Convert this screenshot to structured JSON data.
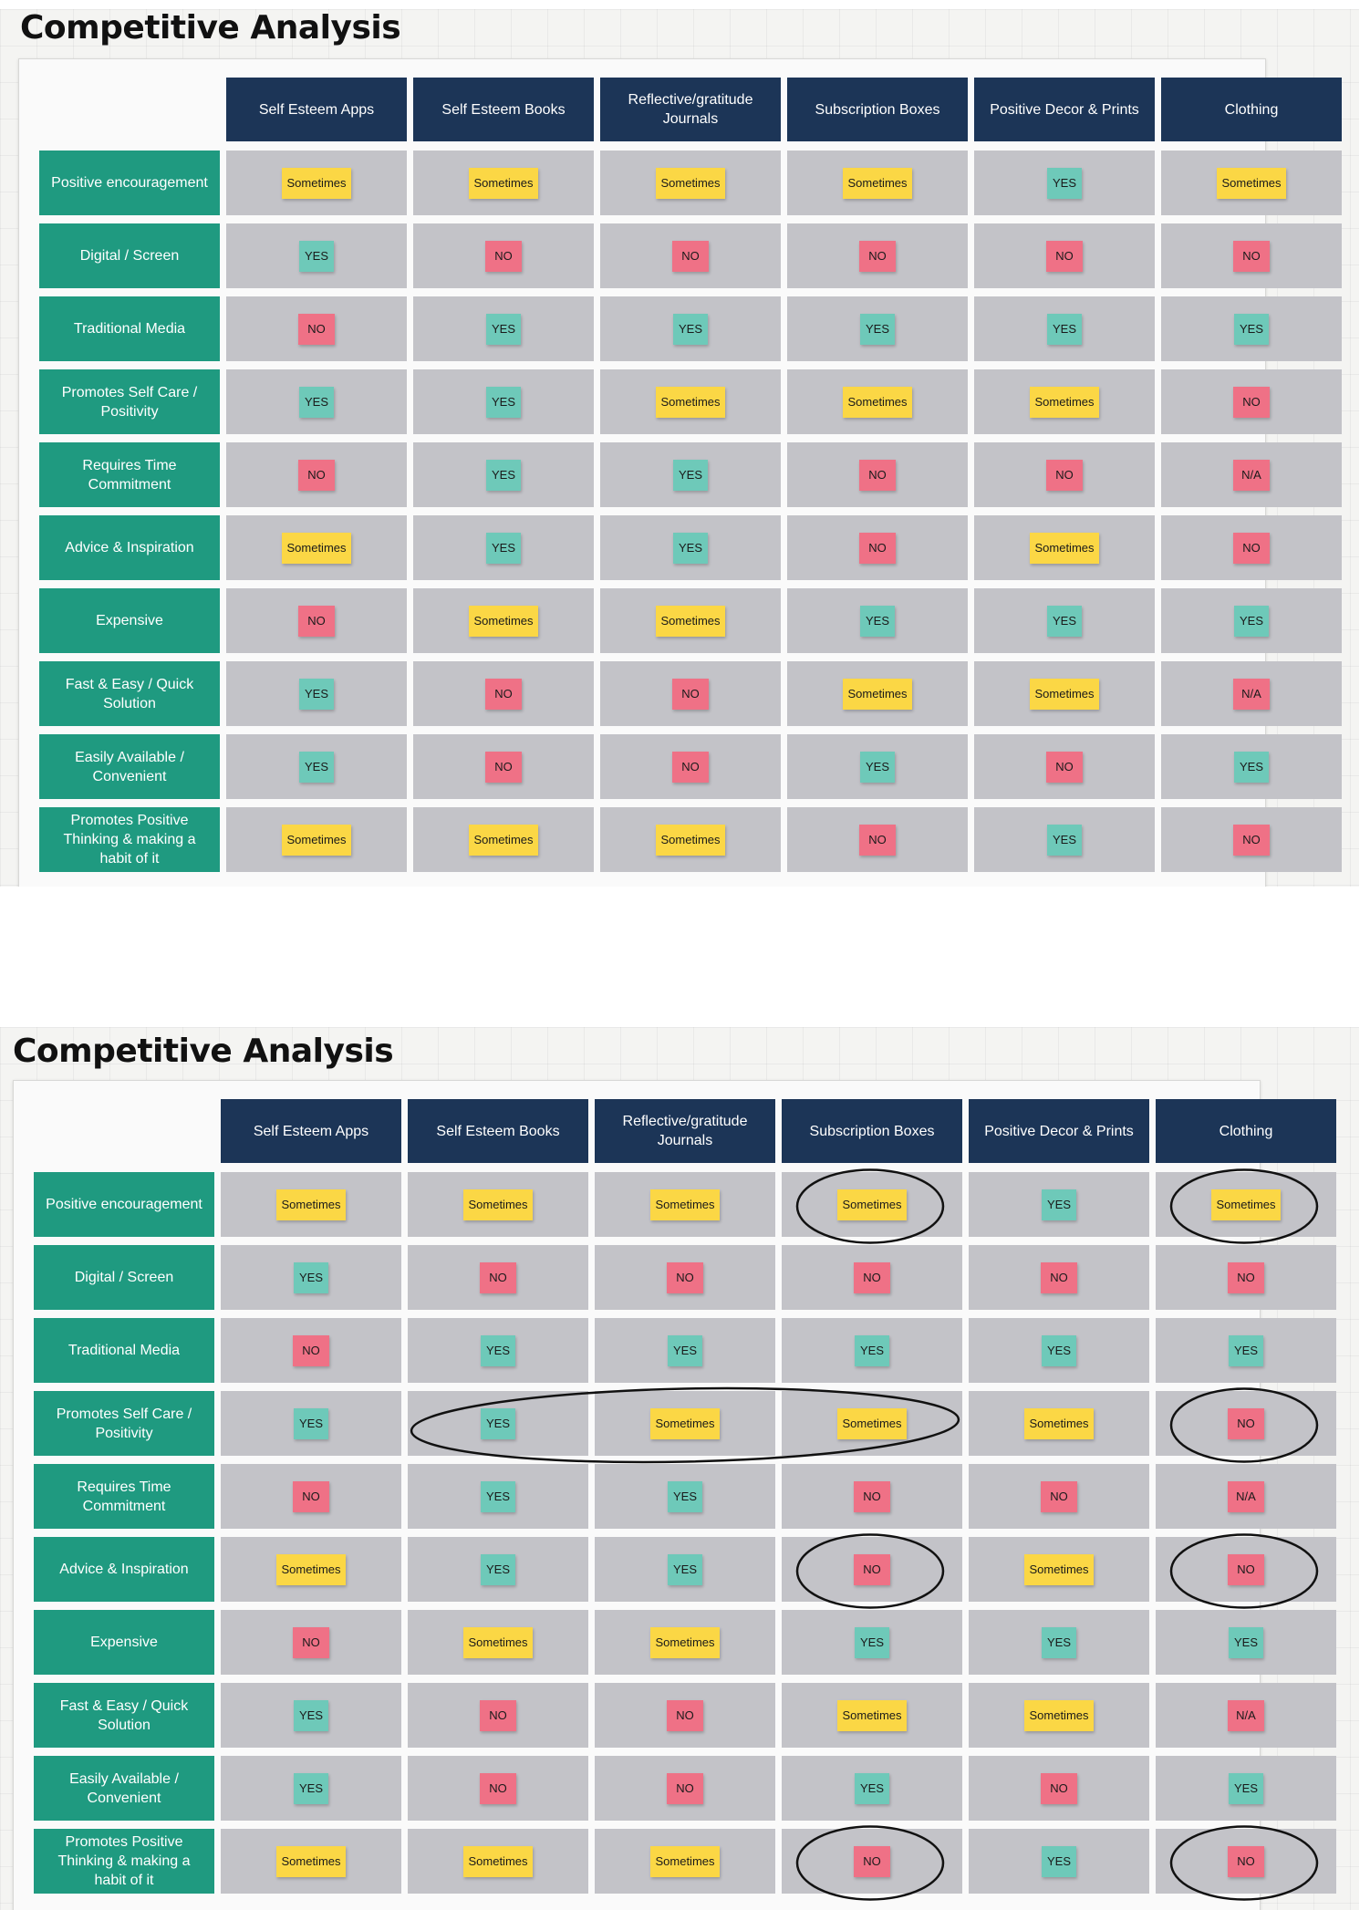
{
  "boards": [
    {
      "id": "original",
      "title": "Competitive Analysis"
    },
    {
      "id": "annotated",
      "title": "Competitive Analysis"
    }
  ],
  "columns": [
    "Self Esteem Apps",
    "Self Esteem Books",
    "Reflective/gratitude Journals",
    "Subscription Boxes",
    "Positive Decor & Prints",
    "Clothing"
  ],
  "rows": [
    {
      "label": "Positive encouragement",
      "values": [
        "Sometimes",
        "Sometimes",
        "Sometimes",
        "Sometimes",
        "YES",
        "Sometimes"
      ]
    },
    {
      "label": "Digital / Screen",
      "values": [
        "YES",
        "NO",
        "NO",
        "NO",
        "NO",
        "NO"
      ]
    },
    {
      "label": "Traditional Media",
      "values": [
        "NO",
        "YES",
        "YES",
        "YES",
        "YES",
        "YES"
      ]
    },
    {
      "label": "Promotes Self Care / Positivity",
      "values": [
        "YES",
        "YES",
        "Sometimes",
        "Sometimes",
        "Sometimes",
        "NO"
      ]
    },
    {
      "label": "Requires Time Commitment",
      "values": [
        "NO",
        "YES",
        "YES",
        "NO",
        "NO",
        "N/A"
      ]
    },
    {
      "label": "Advice & Inspiration",
      "values": [
        "Sometimes",
        "YES",
        "YES",
        "NO",
        "Sometimes",
        "NO"
      ]
    },
    {
      "label": "Expensive",
      "values": [
        "NO",
        "Sometimes",
        "Sometimes",
        "YES",
        "YES",
        "YES"
      ]
    },
    {
      "label": "Fast & Easy / Quick Solution",
      "values": [
        "YES",
        "NO",
        "NO",
        "Sometimes",
        "Sometimes",
        "N/A"
      ]
    },
    {
      "label": "Easily Available / Convenient",
      "values": [
        "YES",
        "NO",
        "NO",
        "YES",
        "NO",
        "YES"
      ]
    },
    {
      "label": "Promotes Positive Thinking & making a habit of it",
      "values": [
        "Sometimes",
        "Sometimes",
        "Sometimes",
        "NO",
        "YES",
        "NO"
      ]
    }
  ],
  "annotations": [
    {
      "row": 0,
      "col_start": 3,
      "col_end": 3
    },
    {
      "row": 0,
      "col_start": 5,
      "col_end": 5
    },
    {
      "row": 3,
      "col_start": 1,
      "col_end": 3
    },
    {
      "row": 3,
      "col_start": 5,
      "col_end": 5
    },
    {
      "row": 5,
      "col_start": 3,
      "col_end": 3
    },
    {
      "row": 5,
      "col_start": 5,
      "col_end": 5
    },
    {
      "row": 9,
      "col_start": 3,
      "col_end": 3
    },
    {
      "row": 9,
      "col_start": 5,
      "col_end": 5
    }
  ],
  "colors": {
    "header_bg": "#1c3557",
    "row_label_bg": "#1f9a80",
    "cell_bg": "#c3c3c8",
    "yes": "#6ec9b9",
    "no": "#ef7186",
    "sometimes": "#fbd745",
    "annotation_stroke": "#111111"
  }
}
